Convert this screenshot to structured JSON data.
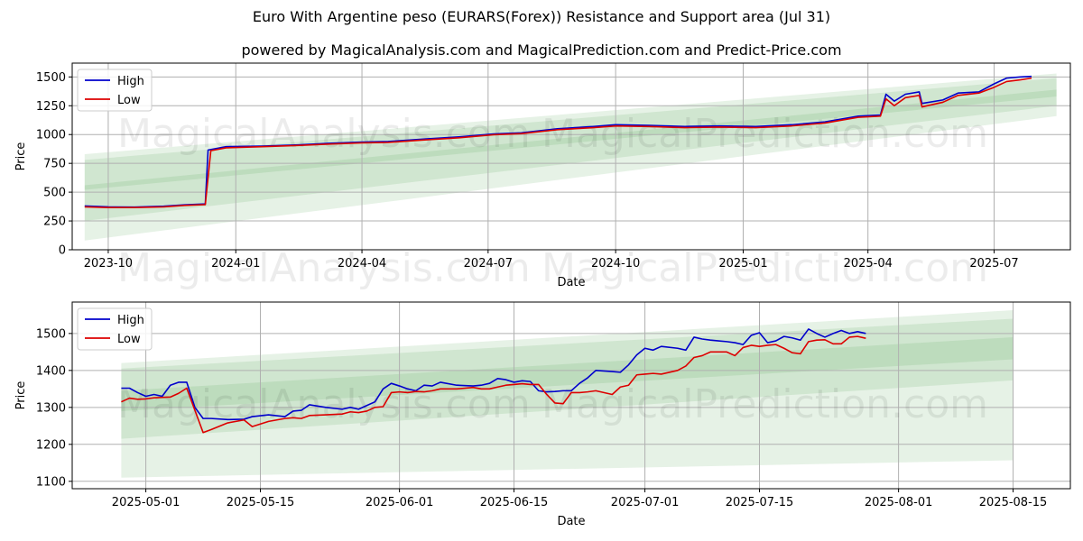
{
  "title": "Euro With Argentine peso (EURARS(Forex)) Resistance and Support area (Jul 31)",
  "subtitle": "powered by MagicalAnalysis.com and MagicalPrediction.com and Predict-Price.com",
  "watermarks": [
    "MagicalAnalysis.com",
    "MagicalPrediction.com"
  ],
  "colors": {
    "high": "#0000cc",
    "low": "#dd0000",
    "band": "#3a9a3a",
    "grid": "#b0b0b0"
  },
  "chart_data": [
    {
      "type": "line",
      "xlabel": "Date",
      "ylabel": "Price",
      "xlim": [
        "2023-09-05",
        "2025-08-25"
      ],
      "ylim": [
        0,
        1620
      ],
      "x_ticks": [
        "2023-10",
        "2024-01",
        "2024-04",
        "2024-07",
        "2024-10",
        "2025-01",
        "2025-04",
        "2025-07"
      ],
      "y_ticks": [
        0,
        250,
        500,
        750,
        1000,
        1250,
        1500
      ],
      "legend": {
        "position": "top-left",
        "entries": [
          "High",
          "Low"
        ]
      },
      "grid": true,
      "series": [
        {
          "name": "High",
          "x": [
            "2023-09-14",
            "2023-10-01",
            "2023-10-20",
            "2023-11-10",
            "2023-11-25",
            "2023-12-10",
            "2023-12-12",
            "2023-12-25",
            "2024-01-20",
            "2024-02-15",
            "2024-03-10",
            "2024-04-01",
            "2024-04-20",
            "2024-05-15",
            "2024-06-10",
            "2024-07-05",
            "2024-07-25",
            "2024-08-20",
            "2024-09-15",
            "2024-10-01",
            "2024-10-25",
            "2024-11-20",
            "2024-12-15",
            "2025-01-10",
            "2025-02-05",
            "2025-03-01",
            "2025-03-25",
            "2025-04-10",
            "2025-04-14",
            "2025-04-20",
            "2025-04-28",
            "2025-05-08",
            "2025-05-10",
            "2025-05-25",
            "2025-06-05",
            "2025-06-20",
            "2025-07-01",
            "2025-07-10",
            "2025-07-20",
            "2025-07-28"
          ],
          "y": [
            380,
            372,
            370,
            378,
            390,
            398,
            865,
            895,
            900,
            910,
            925,
            935,
            940,
            960,
            980,
            1005,
            1015,
            1050,
            1070,
            1085,
            1080,
            1070,
            1075,
            1070,
            1085,
            1110,
            1160,
            1170,
            1350,
            1290,
            1350,
            1370,
            1270,
            1300,
            1360,
            1370,
            1440,
            1490,
            1500,
            1505
          ]
        },
        {
          "name": "Low",
          "x": [
            "2023-09-14",
            "2023-10-01",
            "2023-10-20",
            "2023-11-10",
            "2023-11-25",
            "2023-12-10",
            "2023-12-14",
            "2023-12-25",
            "2024-01-20",
            "2024-02-15",
            "2024-03-10",
            "2024-04-01",
            "2024-04-20",
            "2024-05-15",
            "2024-06-10",
            "2024-07-05",
            "2024-07-25",
            "2024-08-20",
            "2024-09-15",
            "2024-10-01",
            "2024-10-25",
            "2024-11-20",
            "2024-12-15",
            "2025-01-10",
            "2025-02-05",
            "2025-03-01",
            "2025-03-25",
            "2025-04-10",
            "2025-04-14",
            "2025-04-20",
            "2025-04-28",
            "2025-05-08",
            "2025-05-10",
            "2025-05-25",
            "2025-06-05",
            "2025-06-20",
            "2025-07-01",
            "2025-07-10",
            "2025-07-20",
            "2025-07-28"
          ],
          "y": [
            372,
            366,
            366,
            372,
            385,
            392,
            860,
            885,
            895,
            905,
            918,
            928,
            932,
            952,
            972,
            998,
            1008,
            1042,
            1060,
            1075,
            1070,
            1060,
            1065,
            1060,
            1075,
            1100,
            1150,
            1160,
            1310,
            1250,
            1320,
            1340,
            1240,
            1280,
            1340,
            1360,
            1410,
            1460,
            1475,
            1490
          ]
        }
      ],
      "bands": [
        {
          "x": [
            "2023-09-14",
            "2025-08-15"
          ],
          "lower": [
            80,
            1160
          ],
          "upper": [
            830,
            1530
          ]
        },
        {
          "x": [
            "2023-09-14",
            "2025-08-15"
          ],
          "lower": [
            250,
            1250
          ],
          "upper": [
            780,
            1490
          ]
        },
        {
          "x": [
            "2023-09-14",
            "2025-08-15"
          ],
          "lower": [
            520,
            1330
          ],
          "upper": [
            560,
            1390
          ]
        }
      ]
    },
    {
      "type": "line",
      "xlabel": "Date",
      "ylabel": "Price",
      "xlim": [
        "2025-04-22",
        "2025-08-22"
      ],
      "ylim": [
        1080,
        1585
      ],
      "x_ticks": [
        "2025-05-01",
        "2025-05-15",
        "2025-06-01",
        "2025-06-15",
        "2025-07-01",
        "2025-07-15",
        "2025-08-01",
        "2025-08-15"
      ],
      "y_ticks": [
        1100,
        1200,
        1300,
        1400,
        1500
      ],
      "legend": {
        "position": "top-left",
        "entries": [
          "High",
          "Low"
        ]
      },
      "grid": true,
      "series": [
        {
          "name": "High",
          "x": [
            "2025-04-28",
            "2025-04-29",
            "2025-04-30",
            "2025-05-01",
            "2025-05-02",
            "2025-05-03",
            "2025-05-04",
            "2025-05-05",
            "2025-05-06",
            "2025-05-07",
            "2025-05-08",
            "2025-05-09",
            "2025-05-11",
            "2025-05-13",
            "2025-05-14",
            "2025-05-16",
            "2025-05-18",
            "2025-05-19",
            "2025-05-20",
            "2025-05-21",
            "2025-05-23",
            "2025-05-25",
            "2025-05-26",
            "2025-05-27",
            "2025-05-28",
            "2025-05-29",
            "2025-05-30",
            "2025-05-31",
            "2025-06-01",
            "2025-06-02",
            "2025-06-03",
            "2025-06-04",
            "2025-06-05",
            "2025-06-06",
            "2025-06-08",
            "2025-06-10",
            "2025-06-11",
            "2025-06-12",
            "2025-06-13",
            "2025-06-14",
            "2025-06-15",
            "2025-06-16",
            "2025-06-17",
            "2025-06-18",
            "2025-06-19",
            "2025-06-20",
            "2025-06-21",
            "2025-06-22",
            "2025-06-23",
            "2025-06-24",
            "2025-06-25",
            "2025-06-27",
            "2025-06-28",
            "2025-06-29",
            "2025-06-30",
            "2025-07-01",
            "2025-07-02",
            "2025-07-03",
            "2025-07-05",
            "2025-07-06",
            "2025-07-07",
            "2025-07-08",
            "2025-07-09",
            "2025-07-10",
            "2025-07-11",
            "2025-07-12",
            "2025-07-13",
            "2025-07-14",
            "2025-07-15",
            "2025-07-16",
            "2025-07-17",
            "2025-07-18",
            "2025-07-19",
            "2025-07-20",
            "2025-07-21",
            "2025-07-22",
            "2025-07-23",
            "2025-07-24",
            "2025-07-25",
            "2025-07-26",
            "2025-07-27",
            "2025-07-28"
          ],
          "y": [
            1352,
            1352,
            1340,
            1330,
            1335,
            1330,
            1360,
            1368,
            1368,
            1300,
            1270,
            1270,
            1267,
            1268,
            1275,
            1280,
            1275,
            1290,
            1292,
            1307,
            1300,
            1295,
            1300,
            1295,
            1305,
            1315,
            1350,
            1365,
            1358,
            1350,
            1345,
            1360,
            1358,
            1368,
            1360,
            1358,
            1360,
            1365,
            1378,
            1375,
            1368,
            1372,
            1370,
            1345,
            1342,
            1343,
            1345,
            1345,
            1365,
            1380,
            1400,
            1397,
            1395,
            1415,
            1442,
            1460,
            1455,
            1465,
            1460,
            1455,
            1490,
            1485,
            1482,
            1480,
            1478,
            1475,
            1470,
            1495,
            1502,
            1475,
            1480,
            1492,
            1488,
            1482,
            1512,
            1500,
            1490,
            1500,
            1508,
            1500,
            1505,
            1500
          ]
        },
        {
          "name": "Low",
          "x": [
            "2025-04-28",
            "2025-04-29",
            "2025-04-30",
            "2025-05-01",
            "2025-05-02",
            "2025-05-03",
            "2025-05-04",
            "2025-05-05",
            "2025-05-06",
            "2025-05-07",
            "2025-05-08",
            "2025-05-09",
            "2025-05-11",
            "2025-05-13",
            "2025-05-14",
            "2025-05-16",
            "2025-05-18",
            "2025-05-19",
            "2025-05-20",
            "2025-05-21",
            "2025-05-23",
            "2025-05-25",
            "2025-05-26",
            "2025-05-27",
            "2025-05-28",
            "2025-05-29",
            "2025-05-30",
            "2025-05-31",
            "2025-06-01",
            "2025-06-02",
            "2025-06-03",
            "2025-06-04",
            "2025-06-05",
            "2025-06-06",
            "2025-06-08",
            "2025-06-10",
            "2025-06-11",
            "2025-06-12",
            "2025-06-13",
            "2025-06-14",
            "2025-06-15",
            "2025-06-16",
            "2025-06-17",
            "2025-06-18",
            "2025-06-19",
            "2025-06-20",
            "2025-06-21",
            "2025-06-22",
            "2025-06-23",
            "2025-06-24",
            "2025-06-25",
            "2025-06-27",
            "2025-06-28",
            "2025-06-29",
            "2025-06-30",
            "2025-07-01",
            "2025-07-02",
            "2025-07-03",
            "2025-07-05",
            "2025-07-06",
            "2025-07-07",
            "2025-07-08",
            "2025-07-09",
            "2025-07-10",
            "2025-07-11",
            "2025-07-12",
            "2025-07-13",
            "2025-07-14",
            "2025-07-15",
            "2025-07-16",
            "2025-07-17",
            "2025-07-18",
            "2025-07-19",
            "2025-07-20",
            "2025-07-21",
            "2025-07-22",
            "2025-07-23",
            "2025-07-24",
            "2025-07-25",
            "2025-07-26",
            "2025-07-27",
            "2025-07-28"
          ],
          "y": [
            1315,
            1325,
            1322,
            1323,
            1326,
            1327,
            1328,
            1338,
            1352,
            1292,
            1232,
            1240,
            1258,
            1266,
            1248,
            1262,
            1270,
            1272,
            1270,
            1278,
            1280,
            1282,
            1288,
            1286,
            1290,
            1300,
            1302,
            1340,
            1342,
            1340,
            1343,
            1342,
            1345,
            1350,
            1350,
            1354,
            1350,
            1350,
            1355,
            1360,
            1362,
            1364,
            1362,
            1362,
            1335,
            1312,
            1310,
            1340,
            1340,
            1342,
            1345,
            1335,
            1355,
            1360,
            1388,
            1390,
            1392,
            1390,
            1400,
            1412,
            1435,
            1440,
            1450,
            1450,
            1450,
            1440,
            1462,
            1468,
            1465,
            1468,
            1470,
            1460,
            1448,
            1445,
            1478,
            1482,
            1483,
            1472,
            1472,
            1490,
            1492,
            1487
          ]
        }
      ],
      "bands": [
        {
          "x": [
            "2025-04-28",
            "2025-08-15"
          ],
          "lower": [
            1110,
            1157
          ],
          "upper": [
            1420,
            1563
          ]
        },
        {
          "x": [
            "2025-04-28",
            "2025-08-15"
          ],
          "lower": [
            1215,
            1373
          ],
          "upper": [
            1405,
            1540
          ]
        },
        {
          "x": [
            "2025-04-28",
            "2025-08-15"
          ],
          "lower": [
            1290,
            1430
          ],
          "upper": [
            1345,
            1490
          ]
        }
      ]
    }
  ]
}
